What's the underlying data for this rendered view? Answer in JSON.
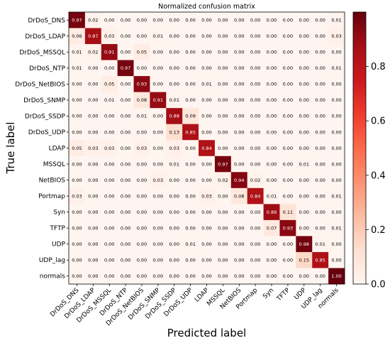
{
  "chart_data": {
    "type": "heatmap",
    "title": "Normalized confusion matrix",
    "xlabel": "Predicted label",
    "ylabel": "True label",
    "colormap": "Reds",
    "colorbar_range": [
      0,
      1
    ],
    "colorbar_ticks": [
      "0.0",
      "0.2",
      "0.4",
      "0.6",
      "0.8"
    ],
    "labels": [
      "DrDoS_DNS",
      "DrDoS_LDAP",
      "DrDoS_MSSQL",
      "DrDoS_NTP",
      "DrDoS_NetBIOS",
      "DrDoS_SNMP",
      "DrDoS_SSDP",
      "DrDoS_UDP",
      "LDAP",
      "MSSQL",
      "NetBIOS",
      "Portmap",
      "Syn",
      "TFTP",
      "UDP",
      "UDP_lag",
      "normals"
    ],
    "matrix": [
      [
        "0.97",
        "0.02",
        "0.00",
        "0.00",
        "0.00",
        "0.00",
        "0.00",
        "0.00",
        "0.00",
        "0.00",
        "0.00",
        "0.00",
        "0.00",
        "0.00",
        "0.00",
        "0.00",
        "0.01"
      ],
      [
        "0.06",
        "0.87",
        "0.03",
        "0.00",
        "0.00",
        "0.01",
        "0.00",
        "0.00",
        "0.00",
        "0.00",
        "0.00",
        "0.00",
        "0.00",
        "0.00",
        "0.00",
        "0.00",
        "0.03"
      ],
      [
        "0.01",
        "0.02",
        "0.91",
        "0.00",
        "0.05",
        "0.00",
        "0.00",
        "0.00",
        "0.00",
        "0.00",
        "0.00",
        "0.00",
        "0.00",
        "0.00",
        "0.00",
        "0.00",
        "0.00"
      ],
      [
        "0.01",
        "0.00",
        "0.00",
        "0.97",
        "0.00",
        "0.00",
        "0.00",
        "0.00",
        "0.00",
        "0.00",
        "0.00",
        "0.00",
        "0.00",
        "0.00",
        "0.00",
        "0.00",
        "0.01"
      ],
      [
        "0.00",
        "0.00",
        "0.05",
        "0.00",
        "0.93",
        "0.00",
        "0.00",
        "0.00",
        "0.01",
        "0.00",
        "0.00",
        "0.00",
        "0.00",
        "0.00",
        "0.00",
        "0.00",
        "0.00"
      ],
      [
        "0.00",
        "0.00",
        "0.01",
        "0.00",
        "0.08",
        "0.91",
        "0.01",
        "0.00",
        "0.00",
        "0.00",
        "0.00",
        "0.00",
        "0.00",
        "0.00",
        "0.00",
        "0.00",
        "0.00"
      ],
      [
        "0.00",
        "0.00",
        "0.00",
        "0.00",
        "0.01",
        "0.00",
        "0.88",
        "0.09",
        "0.00",
        "0.00",
        "0.00",
        "0.00",
        "0.00",
        "0.00",
        "0.00",
        "0.00",
        "0.00"
      ],
      [
        "0.00",
        "0.00",
        "0.00",
        "0.00",
        "0.00",
        "0.00",
        "0.13",
        "0.85",
        "0.00",
        "0.00",
        "0.00",
        "0.00",
        "0.00",
        "0.00",
        "0.00",
        "0.00",
        "0.00"
      ],
      [
        "0.05",
        "0.03",
        "0.03",
        "0.00",
        "0.03",
        "0.00",
        "0.03",
        "0.00",
        "0.84",
        "0.00",
        "0.00",
        "0.00",
        "0.00",
        "0.00",
        "0.00",
        "0.00",
        "0.00"
      ],
      [
        "0.00",
        "0.00",
        "0.00",
        "0.00",
        "0.00",
        "0.00",
        "0.01",
        "0.00",
        "0.00",
        "0.97",
        "0.00",
        "0.00",
        "0.00",
        "0.00",
        "0.01",
        "0.00",
        "0.00"
      ],
      [
        "0.00",
        "0.00",
        "0.00",
        "0.00",
        "0.00",
        "0.03",
        "0.00",
        "0.00",
        "0.00",
        "0.02",
        "0.94",
        "0.02",
        "0.00",
        "0.00",
        "0.00",
        "0.00",
        "0.00"
      ],
      [
        "0.03",
        "0.00",
        "0.00",
        "0.00",
        "0.00",
        "0.00",
        "0.00",
        "0.00",
        "0.03",
        "0.00",
        "0.08",
        "0.84",
        "0.01",
        "0.00",
        "0.00",
        "0.00",
        "0.01"
      ],
      [
        "0.00",
        "0.00",
        "0.00",
        "0.00",
        "0.00",
        "0.00",
        "0.00",
        "0.00",
        "0.00",
        "0.00",
        "0.00",
        "0.00",
        "0.89",
        "0.11",
        "0.00",
        "0.00",
        "0.00"
      ],
      [
        "0.00",
        "0.00",
        "0.00",
        "0.00",
        "0.00",
        "0.00",
        "0.00",
        "0.00",
        "0.00",
        "0.00",
        "0.00",
        "0.00",
        "0.07",
        "0.93",
        "0.00",
        "0.00",
        "0.01"
      ],
      [
        "0.00",
        "0.00",
        "0.00",
        "0.00",
        "0.00",
        "0.00",
        "0.00",
        "0.01",
        "0.00",
        "0.00",
        "0.00",
        "0.00",
        "0.00",
        "0.00",
        "0.98",
        "0.01",
        "0.00"
      ],
      [
        "0.00",
        "0.00",
        "0.00",
        "0.00",
        "0.00",
        "0.00",
        "0.00",
        "0.00",
        "0.00",
        "0.00",
        "0.00",
        "0.00",
        "0.00",
        "0.00",
        "0.15",
        "0.85",
        "0.00"
      ],
      [
        "0.00",
        "0.00",
        "0.00",
        "0.00",
        "0.00",
        "0.00",
        "0.00",
        "0.00",
        "0.00",
        "0.00",
        "0.00",
        "0.00",
        "0.00",
        "0.00",
        "0.00",
        "0.00",
        "1.00"
      ]
    ]
  }
}
